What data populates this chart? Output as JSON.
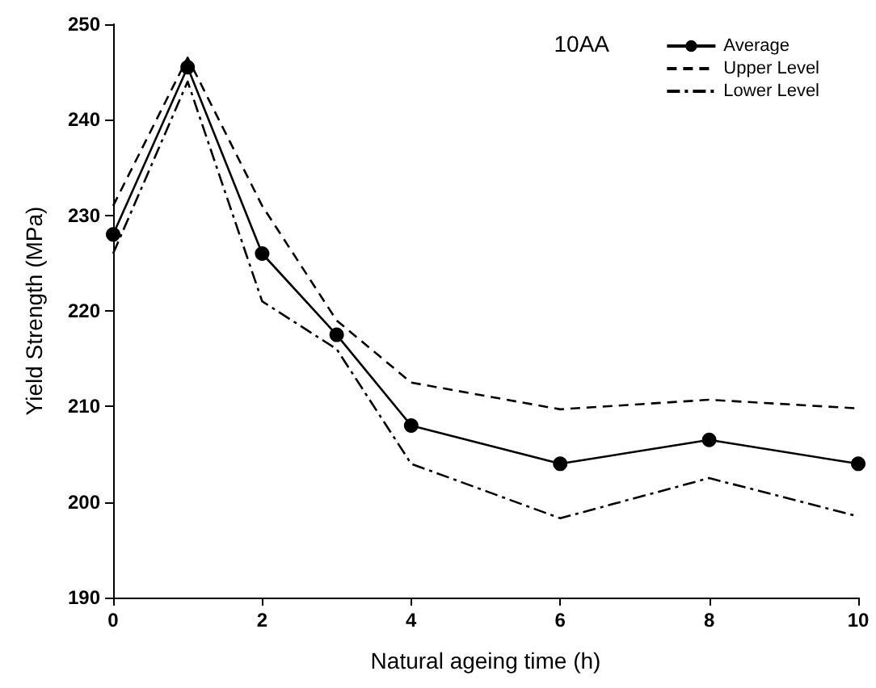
{
  "chart_data": {
    "type": "line",
    "xlabel": "Natural ageing time (h)",
    "ylabel": "Yield Strength (MPa)",
    "annotations": [
      "10AA"
    ],
    "x": [
      0,
      1,
      2,
      3,
      4,
      6,
      8,
      10
    ],
    "series": [
      {
        "name": "Average",
        "color": "#000000",
        "marker": "circle",
        "line_style": "solid",
        "values": [
          228,
          245.5,
          226,
          217.5,
          208,
          204,
          206.5,
          204
        ]
      },
      {
        "name": "Upper Level",
        "color": "#000000",
        "marker": "none",
        "line_style": "dashed",
        "values": [
          231,
          246.5,
          231,
          219,
          212.5,
          209.7,
          210.7,
          209.8
        ]
      },
      {
        "name": "Lower Level",
        "color": "#000000",
        "marker": "none",
        "line_style": "dashdot",
        "values": [
          226,
          244,
          221,
          216,
          204,
          198.3,
          202.5,
          198.5
        ]
      }
    ],
    "xlim": [
      0,
      10
    ],
    "xticks": [
      0,
      2,
      4,
      6,
      8,
      10
    ],
    "ylim": [
      190,
      250
    ],
    "yticks": [
      190,
      200,
      210,
      220,
      230,
      240,
      250
    ],
    "grid": false,
    "legend": "top right"
  }
}
